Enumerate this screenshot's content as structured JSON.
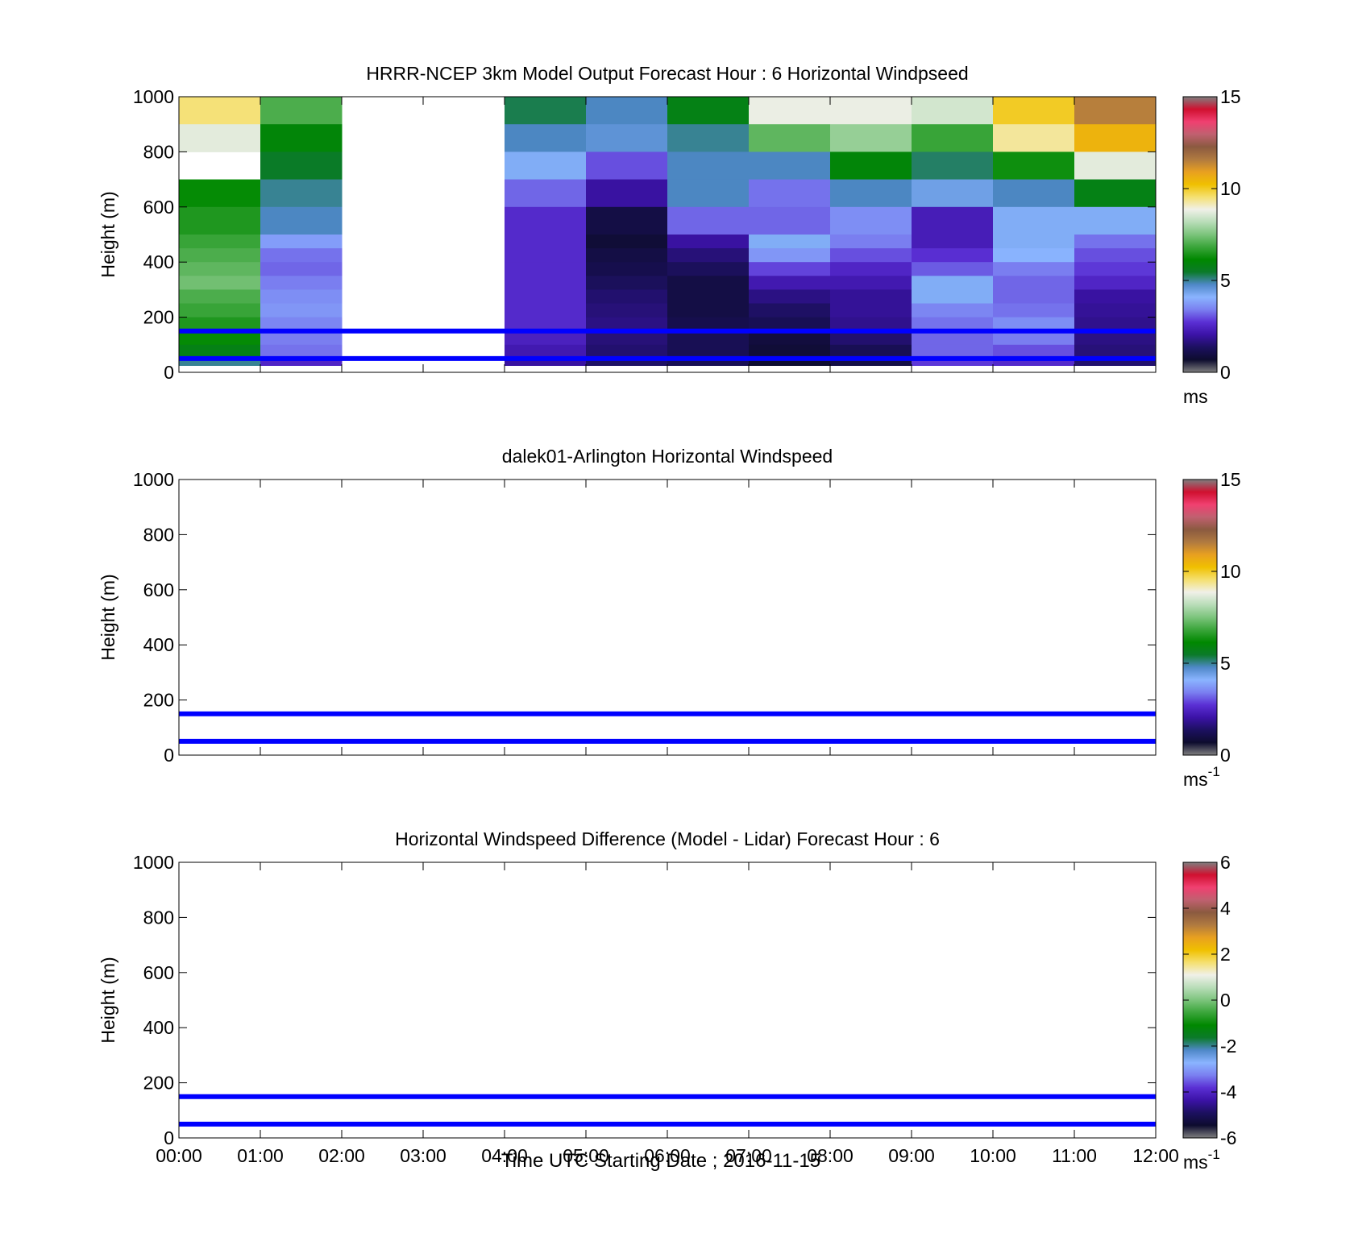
{
  "figure": {
    "xlabel": "Time UTC  Starting Date ; 2016-11-15",
    "x_ticks": [
      "00:00",
      "01:00",
      "02:00",
      "03:00",
      "04:00",
      "05:00",
      "06:00",
      "07:00",
      "08:00",
      "09:00",
      "10:00",
      "11:00",
      "12:00"
    ]
  },
  "colormap": [
    "#7f7f7f",
    "#0d0c2e",
    "#1c1060",
    "#3b12a6",
    "#5a2fd4",
    "#7a7ff0",
    "#8ab4ff",
    "#4f88c8",
    "#0b7a2a",
    "#008800",
    "#3aa53a",
    "#7cc47c",
    "#b8ddb8",
    "#f0f0e8",
    "#f5e070",
    "#f0c000",
    "#e8a020",
    "#b07a40",
    "#8b5a40",
    "#c06070",
    "#f04070",
    "#d01030",
    "#7f7f7f"
  ],
  "chart_data": [
    {
      "type": "heatmap",
      "title": "HRRR-NCEP 3km Model Output   Forecast Hour : 6 Horizontal Windpseed",
      "ylabel": "Height (m)",
      "xlim": [
        "00:00",
        "12:00"
      ],
      "ylim": [
        0,
        1000
      ],
      "y_ticks": [
        0,
        200,
        400,
        600,
        800,
        1000
      ],
      "colorbar": {
        "min": 0,
        "max": 15,
        "ticks": [
          0,
          5,
          10,
          15
        ],
        "unit": "ms",
        "unit_sup": ""
      },
      "grid": false,
      "reference_lines": [
        50,
        150
      ],
      "rows": [
        {
          "bottom": 900,
          "top": 1000
        },
        {
          "bottom": 800,
          "top": 900
        },
        {
          "bottom": 700,
          "top": 800
        },
        {
          "bottom": 600,
          "top": 700
        },
        {
          "bottom": 500,
          "top": 600
        },
        {
          "bottom": 450,
          "top": 500
        },
        {
          "bottom": 400,
          "top": 450
        },
        {
          "bottom": 350,
          "top": 400
        },
        {
          "bottom": 300,
          "top": 350
        },
        {
          "bottom": 250,
          "top": 300
        },
        {
          "bottom": 200,
          "top": 250
        },
        {
          "bottom": 150,
          "top": 200
        },
        {
          "bottom": 100,
          "top": 150
        },
        {
          "bottom": 50,
          "top": 100
        },
        {
          "bottom": 25,
          "top": 50
        }
      ],
      "columns": [
        {
          "x": "00:00",
          "values": [
            9.5,
            8.7,
            null,
            6.2,
            6.5,
            6.8,
            7.0,
            7.2,
            7.4,
            7.0,
            6.8,
            6.5,
            6.2,
            5.8,
            5.0
          ]
        },
        {
          "x": "01:00",
          "values": [
            7.0,
            6.0,
            5.5,
            5.0,
            4.8,
            3.8,
            3.3,
            3.2,
            3.4,
            3.6,
            3.7,
            3.5,
            3.4,
            3.3,
            2.5
          ]
        },
        {
          "x": "02:00",
          "values": [
            null,
            null,
            null,
            null,
            null,
            null,
            null,
            null,
            null,
            null,
            null,
            null,
            null,
            null,
            null
          ]
        },
        {
          "x": "03:00",
          "values": [
            null,
            null,
            null,
            null,
            null,
            null,
            null,
            null,
            null,
            null,
            null,
            null,
            null,
            null,
            null
          ]
        },
        {
          "x": "04:00",
          "values": [
            5.3,
            4.8,
            4.2,
            3.2,
            2.6,
            2.6,
            2.6,
            2.6,
            2.6,
            2.6,
            2.6,
            2.6,
            2.4,
            2.2,
            2.0
          ]
        },
        {
          "x": "05:00",
          "values": [
            4.8,
            4.6,
            3.0,
            2.0,
            1.0,
            0.8,
            1.0,
            1.1,
            1.3,
            1.5,
            1.6,
            1.7,
            1.6,
            1.5,
            1.4
          ]
        },
        {
          "x": "06:00",
          "values": [
            5.8,
            5.0,
            4.8,
            4.8,
            3.2,
            2.0,
            1.6,
            1.3,
            1.0,
            1.0,
            1.0,
            1.1,
            1.2,
            1.2,
            1.2
          ]
        },
        {
          "x": "07:00",
          "values": [
            8.8,
            7.2,
            4.8,
            3.3,
            3.2,
            4.2,
            3.7,
            2.9,
            2.2,
            1.7,
            1.4,
            1.2,
            0.9,
            0.8,
            0.7
          ]
        },
        {
          "x": "08:00",
          "values": [
            8.8,
            7.8,
            6.0,
            4.8,
            3.6,
            3.4,
            3.0,
            2.5,
            2.2,
            1.9,
            1.9,
            1.8,
            1.5,
            1.2,
            1.0
          ]
        },
        {
          "x": "09:00",
          "values": [
            8.5,
            6.8,
            5.2,
            4.4,
            2.3,
            2.3,
            2.7,
            3.1,
            4.2,
            4.2,
            3.5,
            3.3,
            3.2,
            3.2,
            2.8
          ]
        },
        {
          "x": "10:00",
          "values": [
            10.0,
            9.3,
            6.3,
            4.8,
            4.2,
            4.2,
            4.1,
            3.4,
            3.2,
            3.2,
            3.3,
            3.6,
            3.4,
            3.0,
            2.6
          ]
        },
        {
          "x": "11:00",
          "values": [
            11.5,
            10.5,
            8.7,
            5.8,
            4.2,
            3.3,
            3.0,
            2.8,
            2.5,
            2.0,
            1.9,
            1.8,
            1.7,
            1.6,
            1.5
          ]
        }
      ]
    },
    {
      "type": "heatmap",
      "title": "dalek01-Arlington  Horizontal Windspeed",
      "ylabel": "Height (m)",
      "xlim": [
        "00:00",
        "12:00"
      ],
      "ylim": [
        0,
        1000
      ],
      "y_ticks": [
        0,
        200,
        400,
        600,
        800,
        1000
      ],
      "colorbar": {
        "min": 0,
        "max": 15,
        "ticks": [
          0,
          5,
          10,
          15
        ],
        "unit": "ms",
        "unit_sup": "-1"
      },
      "grid": false,
      "reference_lines": [
        50,
        150
      ],
      "rows": [],
      "columns": []
    },
    {
      "type": "heatmap",
      "title": "Horizontal Windspeed Difference (Model - Lidar) Forecast Hour : 6",
      "ylabel": "Height (m)",
      "xlim": [
        "00:00",
        "12:00"
      ],
      "ylim": [
        0,
        1000
      ],
      "y_ticks": [
        0,
        200,
        400,
        600,
        800,
        1000
      ],
      "colorbar": {
        "min": -6,
        "max": 6,
        "ticks": [
          -6,
          -4,
          -2,
          0,
          2,
          4,
          6
        ],
        "unit": "ms",
        "unit_sup": "-1"
      },
      "grid": false,
      "reference_lines": [
        50,
        150
      ],
      "rows": [],
      "columns": []
    }
  ]
}
